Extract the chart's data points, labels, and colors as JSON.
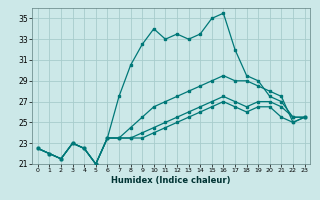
{
  "xlabel": "Humidex (Indice chaleur)",
  "ylabel": "",
  "bg_color": "#cce8e8",
  "grid_color": "#a8cccc",
  "line_color": "#007878",
  "xlim": [
    -0.5,
    23.5
  ],
  "ylim": [
    21,
    36
  ],
  "yticks": [
    21,
    23,
    25,
    27,
    29,
    31,
    33,
    35
  ],
  "xticks": [
    0,
    1,
    2,
    3,
    4,
    5,
    6,
    7,
    8,
    9,
    10,
    11,
    12,
    13,
    14,
    15,
    16,
    17,
    18,
    19,
    20,
    21,
    22,
    23
  ],
  "series1": [
    22.5,
    22.0,
    21.5,
    23.0,
    22.5,
    21.0,
    23.5,
    27.5,
    30.5,
    32.5,
    34.0,
    33.0,
    33.5,
    33.0,
    33.5,
    35.0,
    35.5,
    32.0,
    29.5,
    29.0,
    27.5,
    27.0,
    25.5,
    25.5
  ],
  "series2": [
    22.5,
    22.0,
    21.5,
    23.0,
    22.5,
    21.0,
    23.5,
    23.5,
    24.5,
    25.5,
    26.5,
    27.0,
    27.5,
    28.0,
    28.5,
    29.0,
    29.5,
    29.0,
    29.0,
    28.5,
    28.0,
    27.5,
    25.0,
    25.5
  ],
  "series3": [
    22.5,
    22.0,
    21.5,
    23.0,
    22.5,
    21.0,
    23.5,
    23.5,
    23.5,
    24.0,
    24.5,
    25.0,
    25.5,
    26.0,
    26.5,
    27.0,
    27.5,
    27.0,
    26.5,
    27.0,
    27.0,
    26.5,
    25.5,
    25.5
  ],
  "series4": [
    22.5,
    22.0,
    21.5,
    23.0,
    22.5,
    21.0,
    23.5,
    23.5,
    23.5,
    23.5,
    24.0,
    24.5,
    25.0,
    25.5,
    26.0,
    26.5,
    27.0,
    26.5,
    26.0,
    26.5,
    26.5,
    25.5,
    25.0,
    25.5
  ]
}
